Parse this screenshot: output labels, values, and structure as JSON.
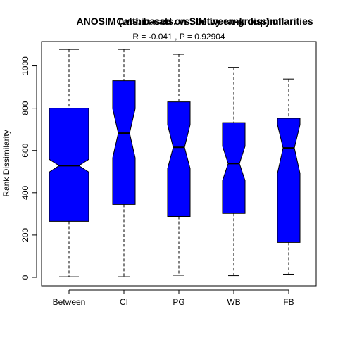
{
  "chart_data": {
    "type": "boxplot",
    "title_1": "ANOSIM (within-cats. vs. between-group) of",
    "title_2": "Cats. based on SIM by rank dissimilarities",
    "stats_line": "R =  -0.041 ,  P =  0.92904",
    "xlabel": "",
    "ylabel": "Rank Dissimilarity",
    "ylim": [
      -40,
      1115
    ],
    "yticks": [
      0,
      200,
      400,
      600,
      800,
      1000
    ],
    "box_color": "#0000ff",
    "notched": true,
    "categories": [
      "Between",
      "CI",
      "PG",
      "WB",
      "FB"
    ],
    "boxes": [
      {
        "name": "Between",
        "min": 3,
        "q1": 265,
        "median": 528,
        "q3": 800,
        "max": 1078,
        "notch_low": 498,
        "notch_high": 558
      },
      {
        "name": "CI",
        "min": 3,
        "q1": 345,
        "median": 682,
        "q3": 930,
        "max": 1078,
        "notch_low": 565,
        "notch_high": 798
      },
      {
        "name": "PG",
        "min": 10,
        "q1": 288,
        "median": 615,
        "q3": 830,
        "max": 1055,
        "notch_low": 515,
        "notch_high": 722
      },
      {
        "name": "WB",
        "min": 8,
        "q1": 302,
        "median": 538,
        "q3": 732,
        "max": 993,
        "notch_low": 458,
        "notch_high": 620
      },
      {
        "name": "FB",
        "min": 15,
        "q1": 165,
        "median": 612,
        "q3": 752,
        "max": 938,
        "notch_low": 492,
        "notch_high": 722
      }
    ]
  }
}
